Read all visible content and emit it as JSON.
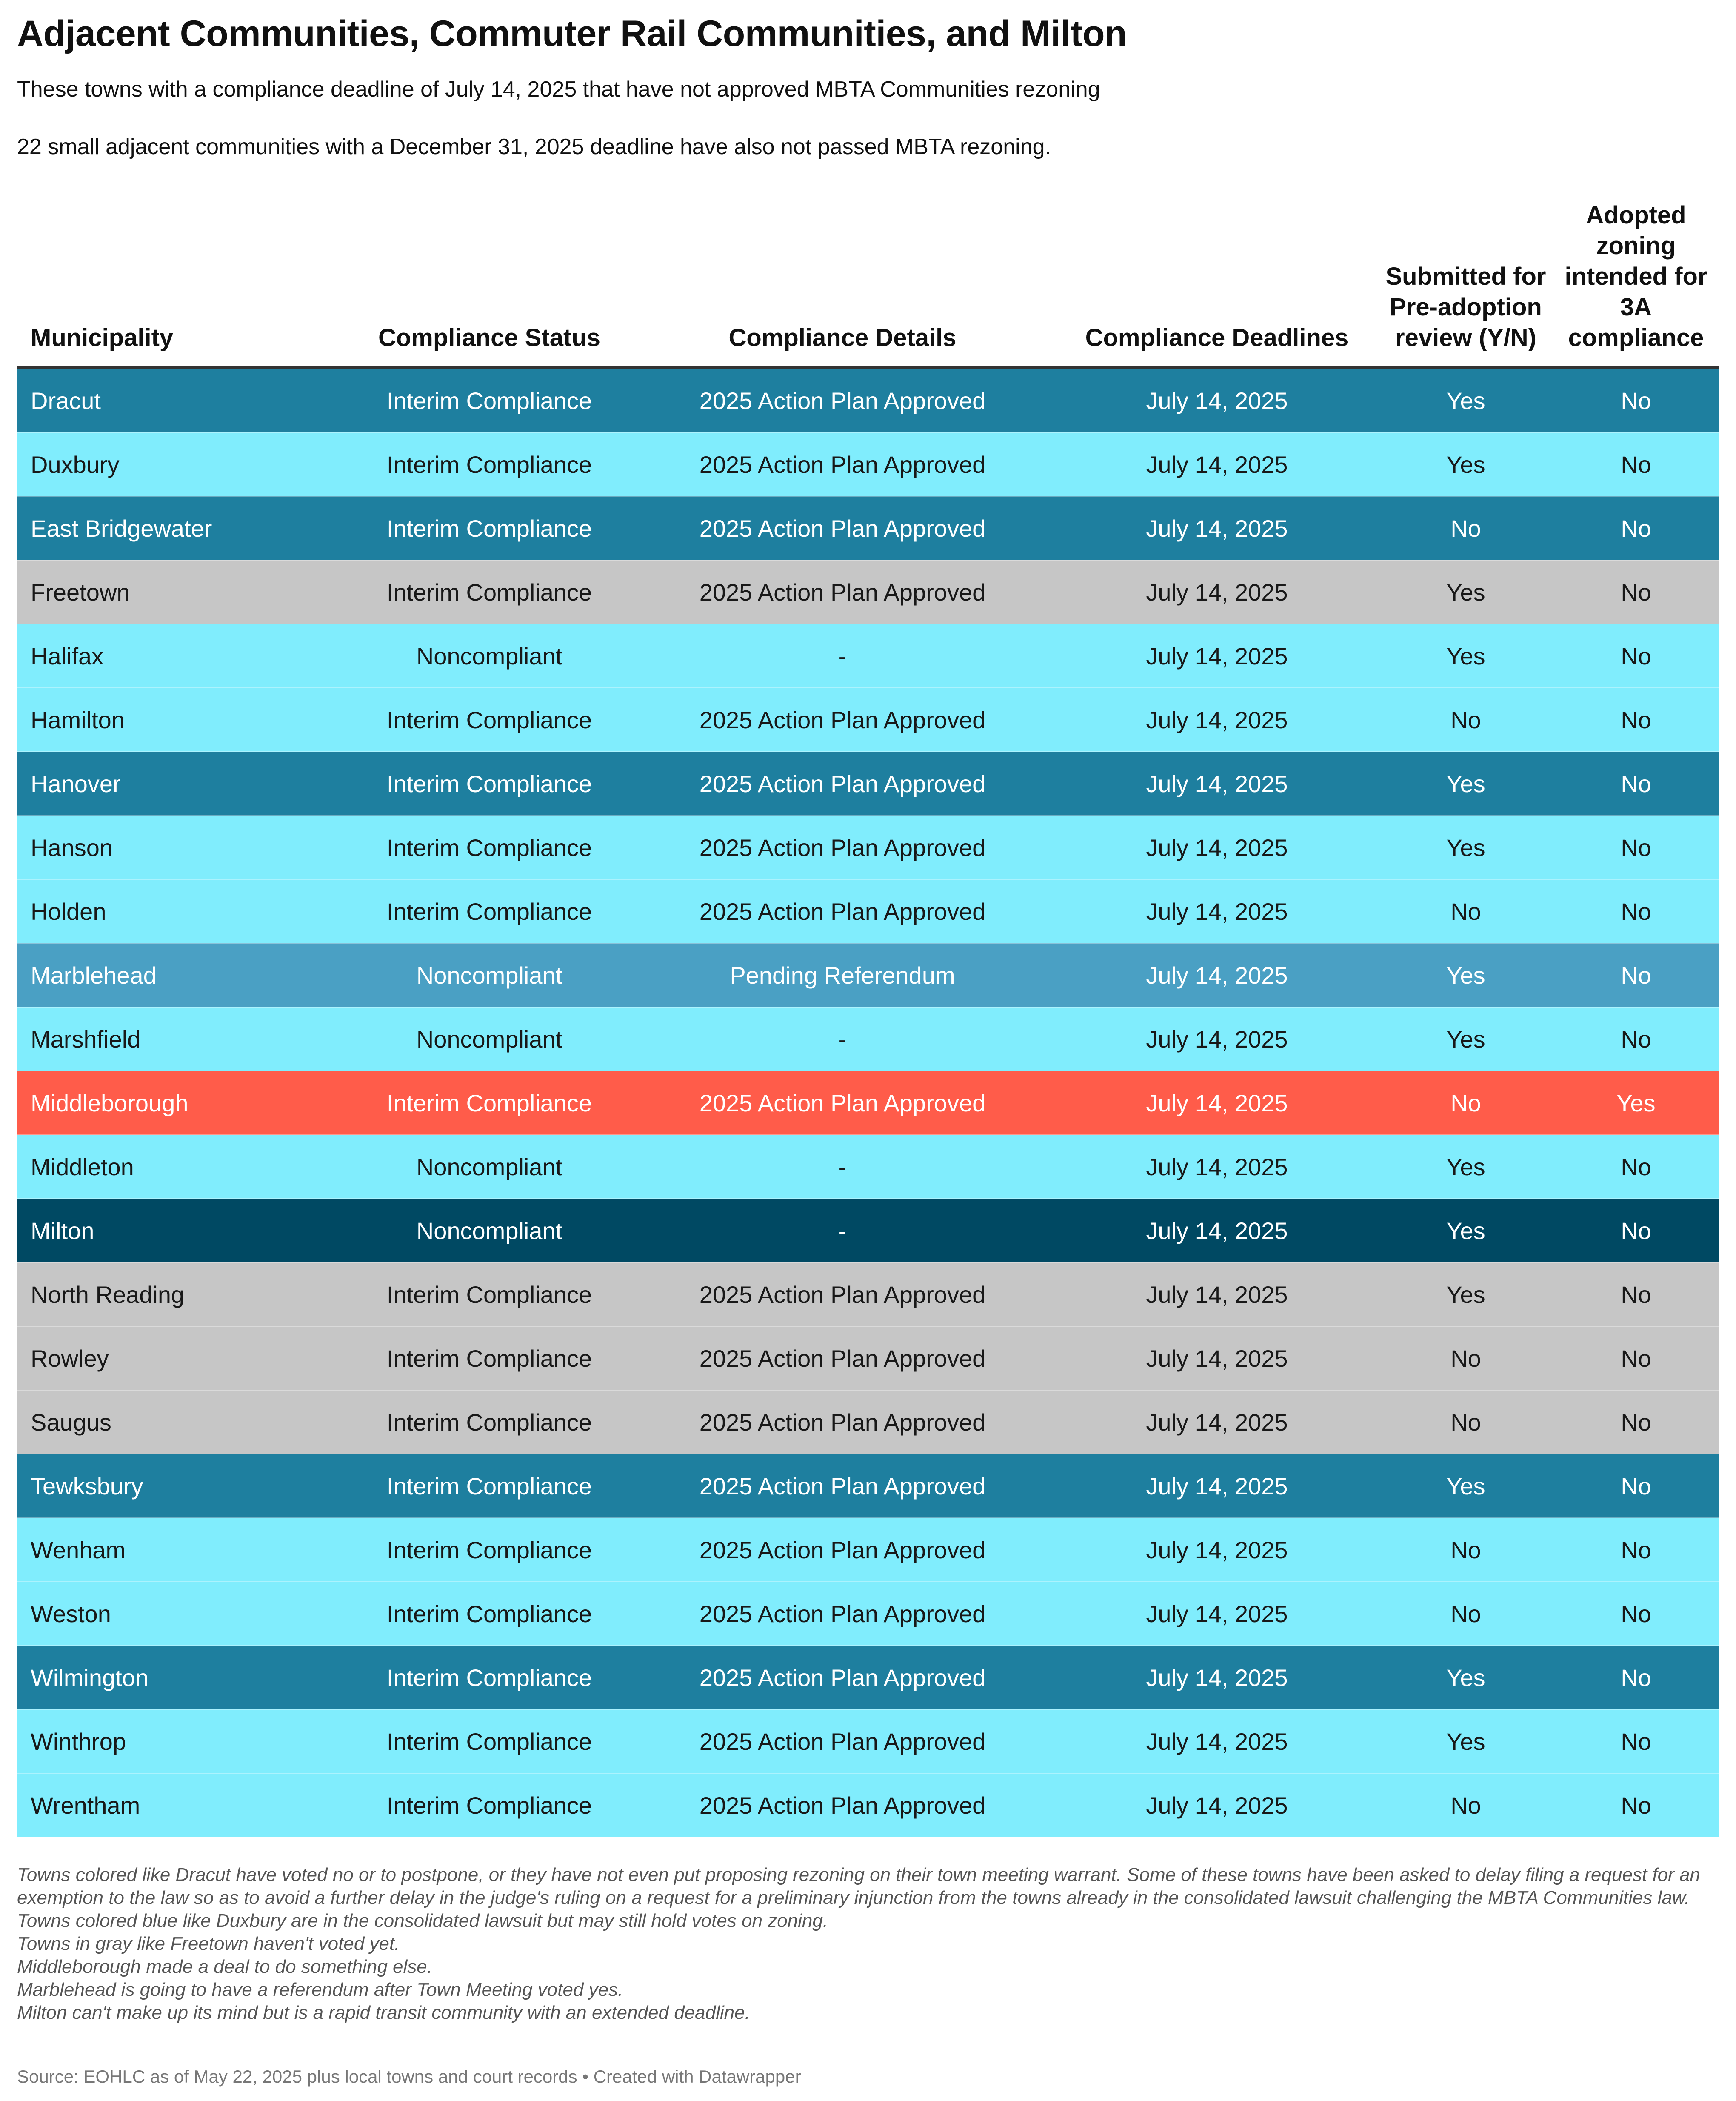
{
  "header": {
    "title": "Adjacent Communities, Commuter Rail Communities, and Milton",
    "subtitle": "These towns with a compliance deadline of July 14, 2025 that have not approved MBTA Communities rezoning",
    "subtitle2": "22 small adjacent communities with a December 31, 2025 deadline have also not passed MBTA rezoning."
  },
  "table": {
    "columns": [
      "Municipality",
      "Compliance Status",
      "Compliance Details",
      "Compliance Deadlines",
      "Submitted for Pre-adoption review (Y/N)",
      "Adopted zoning intended for 3A compliance"
    ],
    "rows": [
      {
        "color": "#1e7f9f",
        "cells": [
          "Dracut",
          "Interim Compliance",
          "2025 Action Plan Approved",
          "July 14, 2025",
          "Yes",
          "No"
        ]
      },
      {
        "color": "#80edfd",
        "cells": [
          "Duxbury",
          "Interim Compliance",
          "2025 Action Plan Approved",
          "July 14, 2025",
          "Yes",
          "No"
        ]
      },
      {
        "color": "#1e7f9f",
        "cells": [
          "East Bridgewater",
          "Interim Compliance",
          "2025 Action Plan Approved",
          "July 14, 2025",
          "No",
          "No"
        ]
      },
      {
        "color": "#c6c6c6",
        "cells": [
          "Freetown",
          "Interim Compliance",
          "2025 Action Plan Approved",
          "July 14, 2025",
          "Yes",
          "No"
        ]
      },
      {
        "color": "#80edfd",
        "cells": [
          "Halifax",
          "Noncompliant",
          "-",
          "July 14, 2025",
          "Yes",
          "No"
        ]
      },
      {
        "color": "#80edfd",
        "cells": [
          "Hamilton",
          "Interim Compliance",
          "2025 Action Plan Approved",
          "July 14, 2025",
          "No",
          "No"
        ]
      },
      {
        "color": "#1e7f9f",
        "cells": [
          "Hanover",
          "Interim Compliance",
          "2025 Action Plan Approved",
          "July 14, 2025",
          "Yes",
          "No"
        ]
      },
      {
        "color": "#80edfd",
        "cells": [
          "Hanson",
          "Interim Compliance",
          "2025 Action Plan Approved",
          "July 14, 2025",
          "Yes",
          "No"
        ]
      },
      {
        "color": "#80edfd",
        "cells": [
          "Holden",
          "Interim Compliance",
          "2025 Action Plan Approved",
          "July 14, 2025",
          "No",
          "No"
        ]
      },
      {
        "color": "#4aa0c4",
        "cells": [
          "Marblehead",
          "Noncompliant",
          "Pending Referendum",
          "July 14, 2025",
          "Yes",
          "No"
        ]
      },
      {
        "color": "#80edfd",
        "cells": [
          "Marshfield",
          "Noncompliant",
          "-",
          "July 14, 2025",
          "Yes",
          "No"
        ]
      },
      {
        "color": "#ff5c4a",
        "cells": [
          "Middleborough",
          "Interim Compliance",
          "2025 Action Plan Approved",
          "July 14, 2025",
          "No",
          "Yes"
        ]
      },
      {
        "color": "#80edfd",
        "cells": [
          "Middleton",
          "Noncompliant",
          "-",
          "July 14, 2025",
          "Yes",
          "No"
        ]
      },
      {
        "color": "#004963",
        "cells": [
          "Milton",
          "Noncompliant",
          "-",
          "July 14, 2025",
          "Yes",
          "No"
        ]
      },
      {
        "color": "#c6c6c6",
        "cells": [
          "North Reading",
          "Interim Compliance",
          "2025 Action Plan Approved",
          "July 14, 2025",
          "Yes",
          "No"
        ]
      },
      {
        "color": "#c6c6c6",
        "cells": [
          "Rowley",
          "Interim Compliance",
          "2025 Action Plan Approved",
          "July 14, 2025",
          "No",
          "No"
        ]
      },
      {
        "color": "#c6c6c6",
        "cells": [
          "Saugus",
          "Interim Compliance",
          "2025 Action Plan Approved",
          "July 14, 2025",
          "No",
          "No"
        ]
      },
      {
        "color": "#1e7f9f",
        "cells": [
          "Tewksbury",
          "Interim Compliance",
          "2025 Action Plan Approved",
          "July 14, 2025",
          "Yes",
          "No"
        ]
      },
      {
        "color": "#80edfd",
        "cells": [
          "Wenham",
          "Interim Compliance",
          "2025 Action Plan Approved",
          "July 14, 2025",
          "No",
          "No"
        ]
      },
      {
        "color": "#80edfd",
        "cells": [
          "Weston",
          "Interim Compliance",
          "2025 Action Plan Approved",
          "July 14, 2025",
          "No",
          "No"
        ]
      },
      {
        "color": "#1e7f9f",
        "cells": [
          "Wilmington",
          "Interim Compliance",
          "2025 Action Plan Approved",
          "July 14, 2025",
          "Yes",
          "No"
        ]
      },
      {
        "color": "#80edfd",
        "cells": [
          "Winthrop",
          "Interim Compliance",
          "2025 Action Plan Approved",
          "July 14, 2025",
          "Yes",
          "No"
        ]
      },
      {
        "color": "#80edfd",
        "cells": [
          "Wrentham",
          "Interim Compliance",
          "2025 Action Plan Approved",
          "July 14, 2025",
          "No",
          "No"
        ]
      }
    ]
  },
  "notes": [
    "Towns colored like Dracut have voted no or to postpone, or they have not even put proposing rezoning on their town meeting warrant. Some of these towns have been asked to delay filing a request for an exemption to the law so as to avoid a further delay in the judge's ruling on a request for a preliminary injunction from the towns already in the consolidated lawsuit challenging the MBTA Communities law.",
    "Towns colored blue like Duxbury are in the consolidated lawsuit but may still hold votes on zoning.",
    "Towns in gray like Freetown haven't voted yet.",
    "Middleborough made a deal to do something else.",
    "Marblehead is going to have a referendum after Town Meeting voted yes.",
    "Milton can't make up its mind but is a rapid transit community with an extended deadline."
  ],
  "source": "Source: EOHLC as of May 22, 2025 plus local towns and court records • Created with Datawrapper"
}
